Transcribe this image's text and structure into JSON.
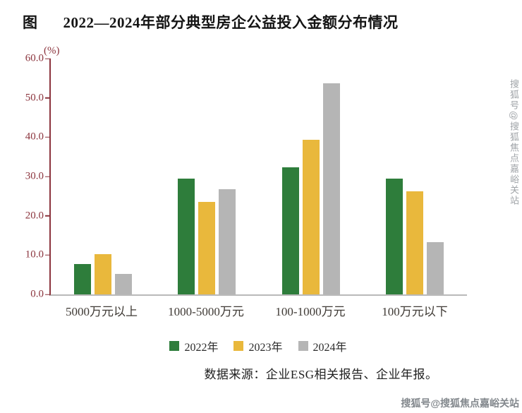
{
  "page": {
    "title_prefix": "图",
    "title": "2022—2024年部分典型房企公益投入金额分布情况",
    "source": "数据来源：企业ESG相关报告、企业年报。",
    "watermark_side": "搜狐号@搜狐焦点嘉峪关站",
    "watermark_bottom": "搜狐号@搜狐焦点嘉峪关站"
  },
  "colors": {
    "axis_maroon": "#8b343d",
    "axis_gray": "#b9b9b9",
    "series_2022": "#2e7d3b",
    "series_2023": "#e9b83c",
    "series_2024": "#b5b5b5"
  },
  "chart_data": {
    "type": "bar",
    "title": "2022—2024年部分典型房企公益投入金额分布情况",
    "xlabel": "",
    "ylabel": "(%)",
    "ylim": [
      0,
      60
    ],
    "ytick_step": 10,
    "ytick_labels": [
      "0.0",
      "10.0",
      "20.0",
      "30.0",
      "40.0",
      "50.0",
      "60.0"
    ],
    "grid": false,
    "legend_position": "bottom",
    "categories": [
      "5000万元以上",
      "1000-5000万元",
      "100-1000万元",
      "100万元以下"
    ],
    "series": [
      {
        "name": "2022年",
        "color": "#2e7d3b",
        "values": [
          7.8,
          29.5,
          32.3,
          29.5
        ]
      },
      {
        "name": "2023年",
        "color": "#e9b83c",
        "values": [
          10.2,
          23.5,
          39.4,
          26.2
        ]
      },
      {
        "name": "2024年",
        "color": "#b5b5b5",
        "values": [
          5.3,
          26.8,
          53.8,
          13.3
        ]
      }
    ]
  }
}
